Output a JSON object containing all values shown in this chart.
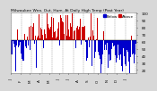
{
  "title": "Milwaukee Wea. Out. Hum. At Daily High Temp (Past Year)",
  "legend_blue_label": "Below",
  "legend_red_label": "Above",
  "background_color": "#d8d8d8",
  "plot_bg_color": "#ffffff",
  "bar_color_above": "#cc0000",
  "bar_color_below": "#0000cc",
  "n_points": 365,
  "seed": 42,
  "mean_value": 62,
  "amplitude": 22,
  "noise_scale": 18,
  "phase": -0.9,
  "n_gridlines": 13,
  "ylim": [
    15,
    102
  ],
  "title_fontsize": 3.2,
  "tick_fontsize": 3.0,
  "legend_fontsize": 3.0,
  "ytick_vals": [
    20,
    30,
    40,
    50,
    60,
    70,
    80,
    90,
    100
  ]
}
